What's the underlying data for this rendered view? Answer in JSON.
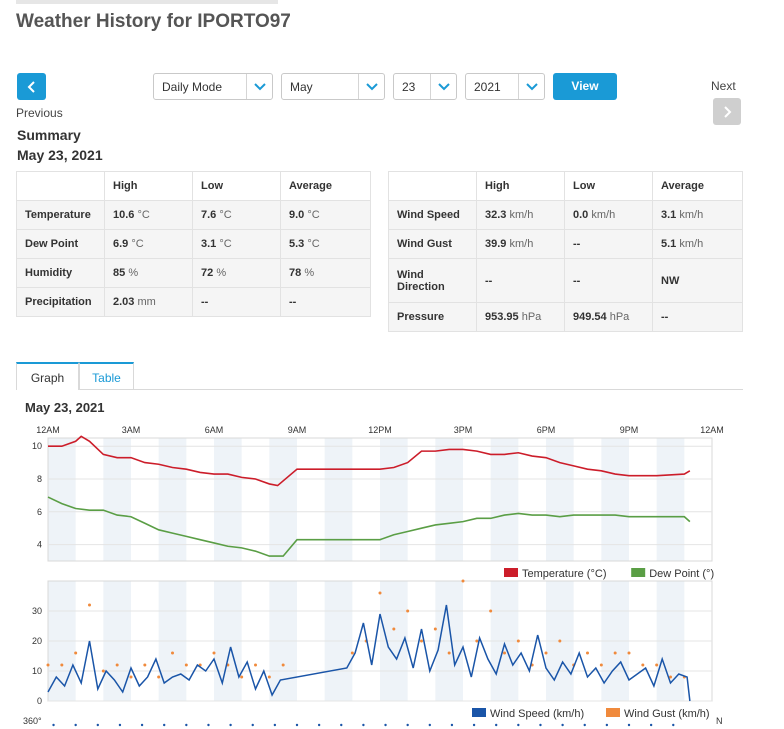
{
  "page": {
    "title": "Weather History for IPORTO97"
  },
  "nav": {
    "previous_label": "Previous",
    "next_label": "Next",
    "mode": "Daily Mode",
    "month": "May",
    "day": "23",
    "year": "2021",
    "view_label": "View"
  },
  "summary": {
    "heading": "Summary",
    "date": "May 23, 2021",
    "left": {
      "headers": [
        "High",
        "Low",
        "Average"
      ],
      "rows": [
        {
          "label": "Temperature",
          "high": "10.6",
          "high_unit": "°C",
          "low": "7.6",
          "low_unit": "°C",
          "avg": "9.0",
          "avg_unit": "°C"
        },
        {
          "label": "Dew Point",
          "high": "6.9",
          "high_unit": "°C",
          "low": "3.1",
          "low_unit": "°C",
          "avg": "5.3",
          "avg_unit": "°C"
        },
        {
          "label": "Humidity",
          "high": "85",
          "high_unit": "%",
          "low": "72",
          "low_unit": "%",
          "avg": "78",
          "avg_unit": "%"
        },
        {
          "label": "Precipitation",
          "high": "2.03",
          "high_unit": "mm",
          "low": "--",
          "low_unit": "",
          "avg": "--",
          "avg_unit": ""
        }
      ]
    },
    "right": {
      "headers": [
        "High",
        "Low",
        "Average"
      ],
      "rows": [
        {
          "label": "Wind Speed",
          "high": "32.3",
          "high_unit": "km/h",
          "low": "0.0",
          "low_unit": "km/h",
          "avg": "3.1",
          "avg_unit": "km/h"
        },
        {
          "label": "Wind Gust",
          "high": "39.9",
          "high_unit": "km/h",
          "low": "--",
          "low_unit": "",
          "avg": "5.1",
          "avg_unit": "km/h"
        },
        {
          "label": "Wind Direction",
          "high": "--",
          "high_unit": "",
          "low": "--",
          "low_unit": "",
          "avg": "NW",
          "avg_unit": ""
        },
        {
          "label": "Pressure",
          "high": "953.95",
          "high_unit": "hPa",
          "low": "949.54",
          "low_unit": "hPa",
          "avg": "--",
          "avg_unit": ""
        }
      ]
    }
  },
  "tabs": [
    {
      "label": "Graph"
    },
    {
      "label": "Table"
    }
  ],
  "graph": {
    "date": "May 23, 2021"
  },
  "colors": {
    "accent": "#1a9ad6",
    "temperature": "#cc1d2a",
    "dew_point": "#5a9e45",
    "wind_speed": "#1a55a8",
    "wind_gust": "#f08a3c"
  },
  "chart_data": [
    {
      "type": "line",
      "x_ticks": [
        "12AM",
        "3AM",
        "6AM",
        "9AM",
        "12PM",
        "3PM",
        "6PM",
        "9PM",
        "12AM"
      ],
      "y_ticks": [
        "10",
        "8",
        "6",
        "4"
      ],
      "ylim": [
        3,
        10.5
      ],
      "series": [
        {
          "name": "Temperature (°C)",
          "color": "#cc1d2a",
          "x": [
            0,
            0.5,
            1,
            1.2,
            1.5,
            2,
            2.5,
            3,
            3.5,
            4,
            4.5,
            5,
            5.5,
            6,
            6.5,
            7,
            7.5,
            8,
            8.3,
            9,
            9.5,
            10,
            11,
            12,
            12.5,
            13,
            13.5,
            14,
            14.5,
            15,
            15.5,
            16,
            16.5,
            17,
            17.5,
            18,
            18.5,
            19,
            19.5,
            20,
            20.5,
            21,
            22,
            23,
            23.2
          ],
          "y": [
            10,
            10,
            10.3,
            10.6,
            10.3,
            9.5,
            9.3,
            9.3,
            9,
            8.9,
            8.7,
            8.6,
            8.4,
            8.3,
            8.3,
            8.1,
            8,
            7.7,
            7.6,
            8.6,
            8.6,
            8.6,
            8.6,
            8.6,
            8.7,
            9,
            9.7,
            9.7,
            9.8,
            9.8,
            9.7,
            9.5,
            9.5,
            9.6,
            9.4,
            9.3,
            9,
            8.8,
            8.6,
            8.5,
            8.3,
            8.2,
            8.2,
            8.3,
            8.5
          ]
        },
        {
          "name": "Dew Point (°)",
          "color": "#5a9e45",
          "x": [
            0,
            0.5,
            1,
            1.5,
            2,
            2.5,
            3,
            3.5,
            4,
            4.5,
            5,
            5.5,
            6,
            6.5,
            7,
            7.5,
            8,
            8.5,
            9,
            9.5,
            10,
            11,
            12,
            12.5,
            13,
            13.5,
            14,
            14.5,
            15,
            15.5,
            16,
            16.5,
            17,
            17.5,
            18,
            18.5,
            19,
            19.5,
            20,
            20.5,
            21,
            22,
            23,
            23.2
          ],
          "y": [
            6.9,
            6.5,
            6.2,
            6.1,
            6.1,
            5.8,
            5.7,
            5.3,
            4.9,
            4.7,
            4.5,
            4.3,
            4.1,
            3.9,
            3.8,
            3.6,
            3.3,
            3.3,
            4.3,
            4.3,
            4.3,
            4.3,
            4.3,
            4.6,
            4.8,
            5,
            5.2,
            5.3,
            5.4,
            5.6,
            5.6,
            5.8,
            5.9,
            5.8,
            5.8,
            5.7,
            5.8,
            5.8,
            5.8,
            5.8,
            5.7,
            5.7,
            5.7,
            5.4
          ]
        }
      ],
      "legend": "bottom-right"
    },
    {
      "type": "line",
      "x_ticks": [
        "12AM",
        "3AM",
        "6AM",
        "9AM",
        "12PM",
        "3PM",
        "6PM",
        "9PM",
        "12AM"
      ],
      "y_ticks": [
        "30",
        "20",
        "10",
        "0"
      ],
      "ylim": [
        0,
        40
      ],
      "series": [
        {
          "name": "Wind Speed (km/h)",
          "color": "#1a55a8",
          "x": [
            0,
            0.3,
            0.6,
            0.9,
            1.2,
            1.5,
            1.8,
            2.1,
            2.4,
            2.7,
            3,
            3.3,
            3.6,
            3.9,
            4.2,
            4.5,
            4.8,
            5.1,
            5.4,
            5.7,
            6,
            6.3,
            6.6,
            6.9,
            7.2,
            7.5,
            7.8,
            8.1,
            8.4,
            10.8,
            11.1,
            11.4,
            11.7,
            12,
            12.3,
            12.6,
            12.9,
            13.2,
            13.5,
            13.8,
            14.1,
            14.4,
            14.7,
            15,
            15.3,
            15.6,
            15.9,
            16.2,
            16.5,
            16.8,
            17.1,
            17.4,
            17.7,
            18,
            18.3,
            18.6,
            18.9,
            19.2,
            19.5,
            19.8,
            20.1,
            20.4,
            20.7,
            21,
            21.3,
            21.6,
            21.9,
            22.2,
            22.5,
            22.8,
            23.1,
            23.2
          ],
          "y": [
            3,
            8,
            5,
            12,
            6,
            20,
            4,
            10,
            7,
            3,
            11,
            5,
            8,
            14,
            6,
            8,
            9,
            7,
            12,
            10,
            14,
            6,
            18,
            8,
            13,
            4,
            10,
            2,
            7,
            11,
            16,
            26,
            12,
            29,
            18,
            14,
            21,
            11,
            24,
            10,
            17,
            32,
            12,
            18,
            8,
            21,
            14,
            9,
            19,
            12,
            16,
            10,
            22,
            11,
            7,
            13,
            9,
            16,
            8,
            11,
            6,
            10,
            13,
            7,
            9,
            11,
            5,
            14,
            6,
            9,
            8,
            0
          ]
        },
        {
          "name": "Wind Gust (km/h)",
          "color": "#f08a3c",
          "x": [
            0,
            0.5,
            1,
            1.5,
            2,
            2.5,
            3,
            3.5,
            4,
            4.5,
            5,
            5.5,
            6,
            6.5,
            7,
            7.5,
            8,
            8.5,
            11,
            11.5,
            12,
            12.5,
            13,
            13.5,
            14,
            14.5,
            15,
            15.5,
            16,
            16.5,
            17,
            17.5,
            18,
            18.5,
            19,
            19.5,
            20,
            20.5,
            21,
            21.5,
            22,
            22.5,
            23
          ],
          "y": [
            12,
            12,
            16,
            32,
            10,
            12,
            8,
            12,
            8,
            16,
            12,
            12,
            16,
            12,
            8,
            12,
            8,
            12,
            16,
            20,
            36,
            24,
            30,
            20,
            24,
            16,
            40,
            20,
            30,
            16,
            20,
            12,
            16,
            20,
            12,
            16,
            12,
            16,
            16,
            12,
            12,
            8,
            8
          ]
        }
      ],
      "legend": "bottom-right"
    }
  ],
  "wind_direction_axis": {
    "top_label": "360°",
    "right_label": "N"
  }
}
